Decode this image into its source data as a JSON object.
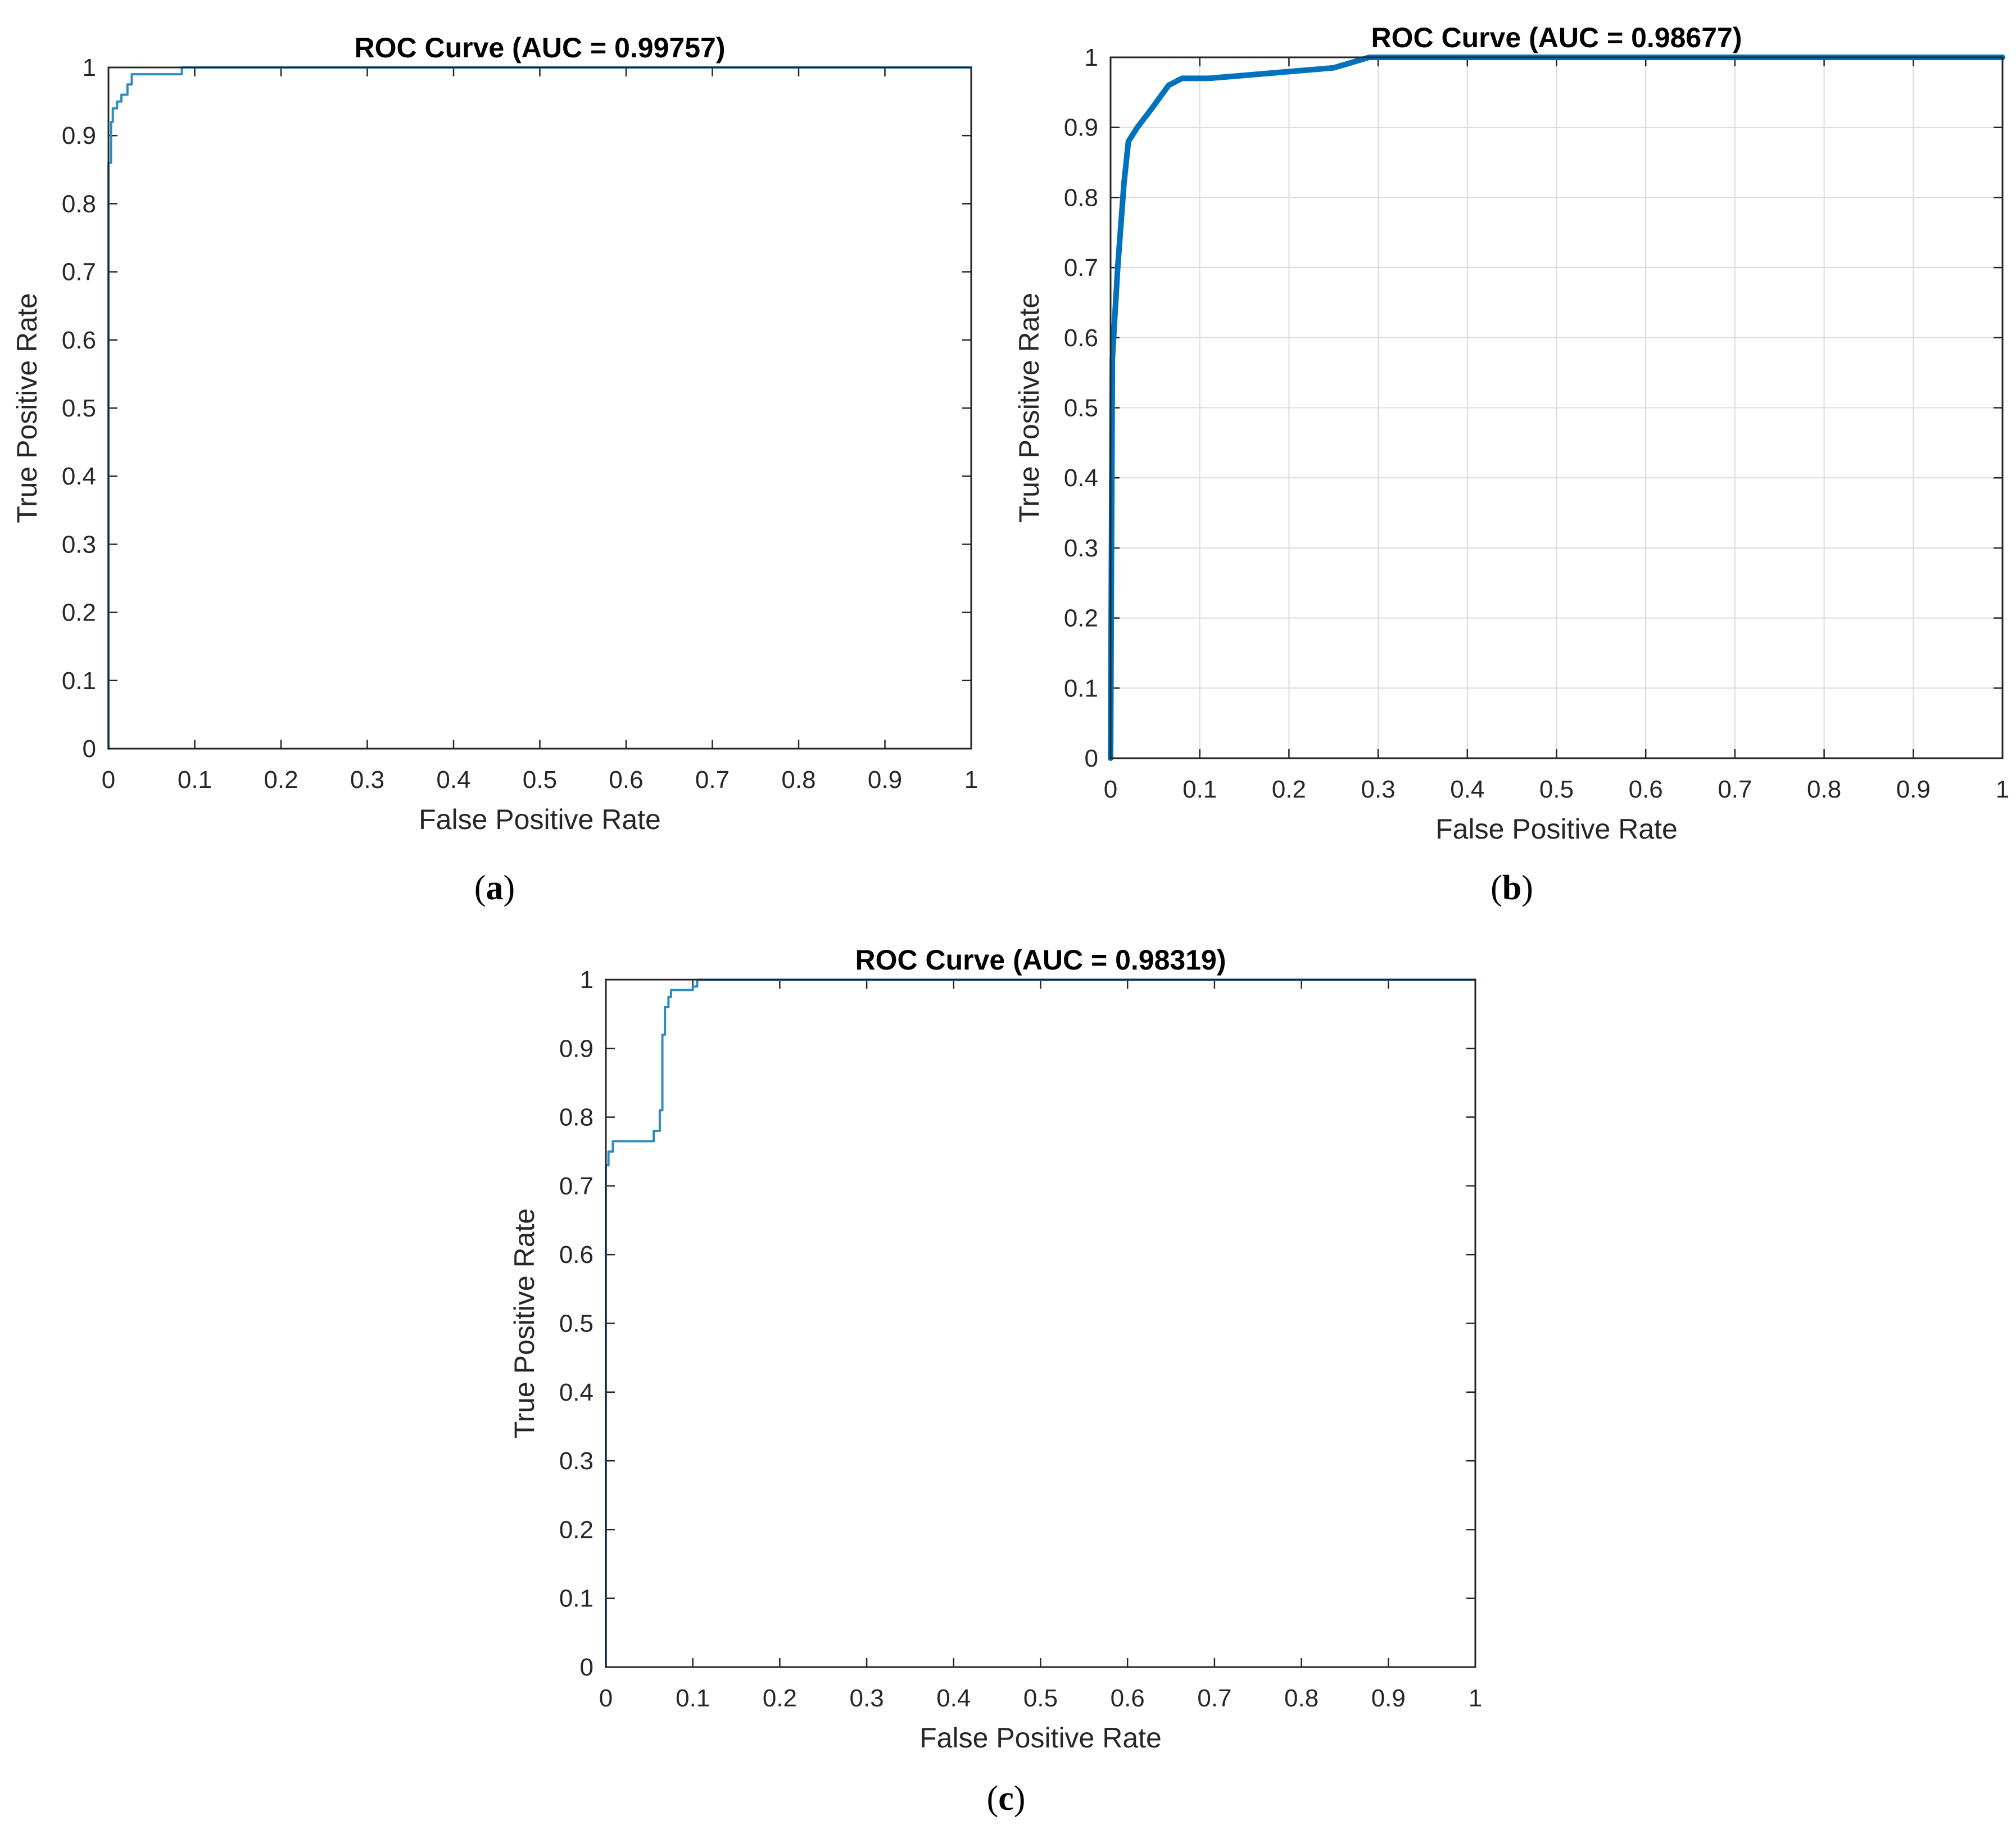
{
  "panels": [
    {
      "id": "a",
      "caption_letter": "a",
      "chart_data": {
        "type": "line",
        "title": "ROC Curve (AUC = 0.99757)",
        "xlabel": "False Positive Rate",
        "ylabel": "True Positive Rate",
        "xlim": [
          0,
          1
        ],
        "ylim": [
          0,
          1
        ],
        "xticks": [
          0,
          0.1,
          0.2,
          0.3,
          0.4,
          0.5,
          0.6,
          0.7,
          0.8,
          0.9,
          1
        ],
        "yticks": [
          0,
          0.1,
          0.2,
          0.3,
          0.4,
          0.5,
          0.6,
          0.7,
          0.8,
          0.9,
          1
        ],
        "xtick_labels": [
          "0",
          "0.1",
          "0.2",
          "0.3",
          "0.4",
          "0.5",
          "0.6",
          "0.7",
          "0.8",
          "0.9",
          "1"
        ],
        "ytick_labels": [
          "0",
          "0.1",
          "0.2",
          "0.3",
          "0.4",
          "0.5",
          "0.6",
          "0.7",
          "0.8",
          "0.9",
          "1"
        ],
        "grid": false,
        "line_color": "#2b8cbe",
        "series": [
          {
            "x": [
              0,
              0,
              0.003,
              0.003,
              0.005,
              0.005,
              0.01,
              0.01,
              0.015,
              0.015,
              0.022,
              0.022,
              0.027,
              0.027,
              0.085,
              0.085,
              1
            ],
            "y": [
              0,
              0.86,
              0.86,
              0.92,
              0.92,
              0.94,
              0.94,
              0.95,
              0.95,
              0.96,
              0.96,
              0.975,
              0.975,
              0.99,
              0.99,
              1,
              1
            ]
          }
        ]
      }
    },
    {
      "id": "b",
      "caption_letter": "b",
      "chart_data": {
        "type": "line",
        "title": "ROC Curve (AUC = 0.98677)",
        "xlabel": "False Positive Rate",
        "ylabel": "True Positive Rate",
        "xlim": [
          0,
          1
        ],
        "ylim": [
          0,
          1
        ],
        "xticks": [
          0,
          0.1,
          0.2,
          0.3,
          0.4,
          0.5,
          0.6,
          0.7,
          0.8,
          0.9,
          1
        ],
        "yticks": [
          0,
          0.1,
          0.2,
          0.3,
          0.4,
          0.5,
          0.6,
          0.7,
          0.8,
          0.9,
          1
        ],
        "xtick_labels": [
          "0",
          "0.1",
          "0.2",
          "0.3",
          "0.4",
          "0.5",
          "0.6",
          "0.7",
          "0.8",
          "0.9",
          "1"
        ],
        "ytick_labels": [
          "0",
          "0.1",
          "0.2",
          "0.3",
          "0.4",
          "0.5",
          "0.6",
          "0.7",
          "0.8",
          "0.9",
          "1"
        ],
        "grid": true,
        "line_color": "#0072bd",
        "series": [
          {
            "x": [
              0,
              0.002,
              0.008,
              0.015,
              0.02,
              0.03,
              0.045,
              0.065,
              0.08,
              0.11,
              0.25,
              0.29,
              1
            ],
            "y": [
              0,
              0.57,
              0.7,
              0.82,
              0.88,
              0.9,
              0.925,
              0.96,
              0.97,
              0.97,
              0.985,
              1,
              1
            ]
          }
        ]
      }
    },
    {
      "id": "c",
      "caption_letter": "c",
      "chart_data": {
        "type": "line",
        "title": "ROC Curve (AUC = 0.98319)",
        "xlabel": "False Positive Rate",
        "ylabel": "True Positive Rate",
        "xlim": [
          0,
          1
        ],
        "ylim": [
          0,
          1
        ],
        "xticks": [
          0,
          0.1,
          0.2,
          0.3,
          0.4,
          0.5,
          0.6,
          0.7,
          0.8,
          0.9,
          1
        ],
        "yticks": [
          0,
          0.1,
          0.2,
          0.3,
          0.4,
          0.5,
          0.6,
          0.7,
          0.8,
          0.9,
          1
        ],
        "xtick_labels": [
          "0",
          "0.1",
          "0.2",
          "0.3",
          "0.4",
          "0.5",
          "0.6",
          "0.7",
          "0.8",
          "0.9",
          "1"
        ],
        "ytick_labels": [
          "0",
          "0.1",
          "0.2",
          "0.3",
          "0.4",
          "0.5",
          "0.6",
          "0.7",
          "0.8",
          "0.9",
          "1"
        ],
        "grid": false,
        "line_color": "#2b8cbe",
        "series": [
          {
            "x": [
              0,
              0,
              0.003,
              0.003,
              0.008,
              0.008,
              0.055,
              0.055,
              0.062,
              0.062,
              0.065,
              0.065,
              0.068,
              0.068,
              0.072,
              0.072,
              0.075,
              0.075,
              0.08,
              0.08,
              0.1,
              0.1,
              0.105,
              0.105,
              1
            ],
            "y": [
              0,
              0.73,
              0.73,
              0.75,
              0.75,
              0.765,
              0.765,
              0.78,
              0.78,
              0.81,
              0.81,
              0.92,
              0.92,
              0.96,
              0.96,
              0.975,
              0.975,
              0.985,
              0.985,
              0.985,
              0.985,
              0.99,
              0.99,
              1,
              1
            ]
          }
        ]
      }
    }
  ]
}
